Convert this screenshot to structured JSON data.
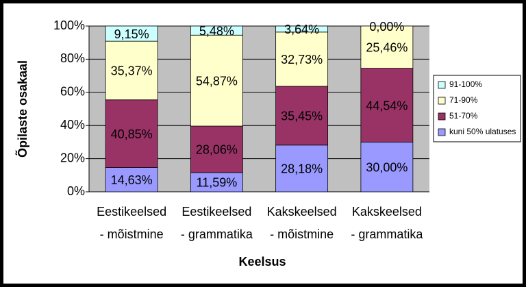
{
  "chart_data": {
    "type": "stacked-bar",
    "y_label": "Õpilaste osakaal",
    "x_label": "Keelsus",
    "categories": [
      [
        "Eestikeelsed",
        "- mõistmine"
      ],
      [
        "Eestikeelsed",
        "- grammatika"
      ],
      [
        "Kakskeelsed",
        "- mõistmine"
      ],
      [
        "Kakskeelsed",
        "- grammatika"
      ]
    ],
    "series": [
      {
        "name": "kuni 50% ulatuses",
        "color": "#9999ff",
        "values": [
          14.63,
          11.59,
          28.18,
          30.0
        ],
        "value_labels": [
          "14,63%",
          "11,59%",
          "28,18%",
          "30,00%"
        ]
      },
      {
        "name": "51-70%",
        "color": "#993366",
        "values": [
          40.85,
          28.06,
          35.45,
          44.54
        ],
        "value_labels": [
          "40,85%",
          "28,06%",
          "35,45%",
          "44,54%"
        ]
      },
      {
        "name": "71-90%",
        "color": "#ffffcc",
        "values": [
          35.37,
          54.87,
          32.73,
          25.46
        ],
        "value_labels": [
          "35,37%",
          "54,87%",
          "32,73%",
          "25,46%"
        ]
      },
      {
        "name": "91-100%",
        "color": "#ccffff",
        "values": [
          9.15,
          5.48,
          3.64,
          0.0
        ],
        "value_labels": [
          "9,15%",
          "5,48%",
          "3,64%",
          "0,00%"
        ]
      }
    ],
    "ylim": [
      0,
      100
    ],
    "yticks": [
      {
        "value": 0,
        "label": "0%"
      },
      {
        "value": 20,
        "label": "20%"
      },
      {
        "value": 40,
        "label": "40%"
      },
      {
        "value": 60,
        "label": "60%"
      },
      {
        "value": 80,
        "label": "80%"
      },
      {
        "value": 100,
        "label": "100%"
      }
    ],
    "grid": true,
    "legend": "right"
  }
}
